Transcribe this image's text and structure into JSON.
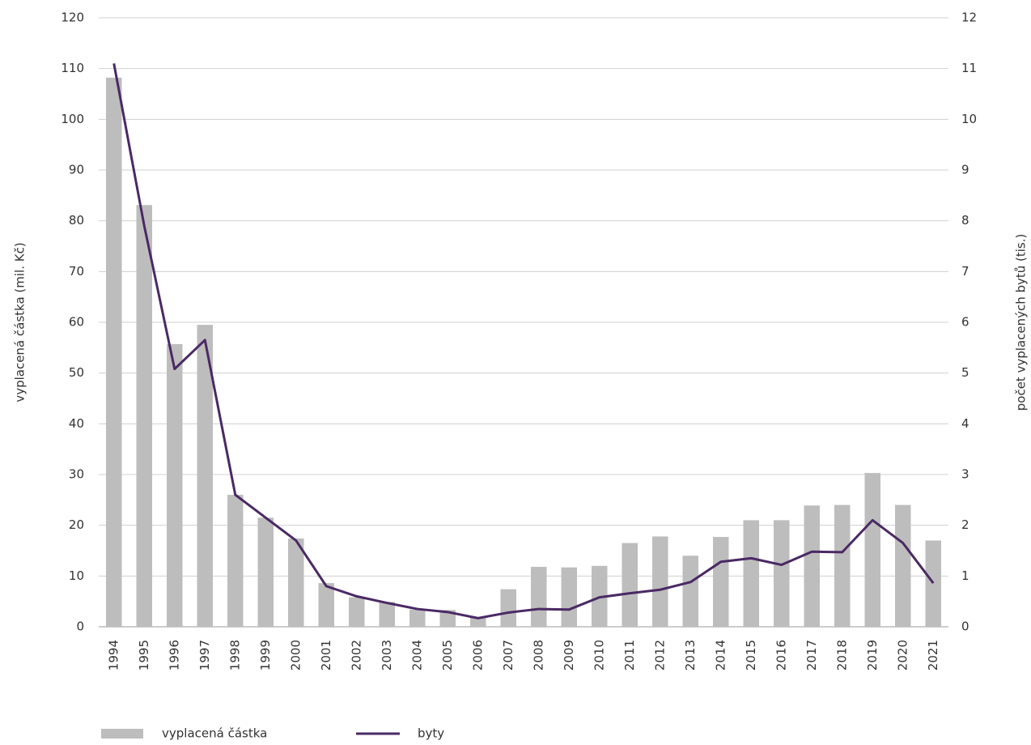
{
  "chart_data": {
    "type": "bar_line",
    "y_label": "vyplacená částka (mil. Kč)",
    "y2_label": "počet vyplacených bytů (tis.)",
    "categories": [
      "1994",
      "1995",
      "1996",
      "1997",
      "1998",
      "1999",
      "2000",
      "2001",
      "2002",
      "2003",
      "2004",
      "2005",
      "2006",
      "2007",
      "2008",
      "2009",
      "2010",
      "2011",
      "2012",
      "2013",
      "2014",
      "2015",
      "2016",
      "2017",
      "2018",
      "2019",
      "2020",
      "2021"
    ],
    "series": [
      {
        "name": "vyplacená částka",
        "type": "bar",
        "color": "#bdbdbd",
        "axis": "y",
        "values": [
          108.2,
          83.1,
          55.7,
          59.5,
          26,
          21.5,
          17.4,
          8.6,
          5.8,
          4.9,
          3.4,
          3.3,
          1.8,
          7.4,
          11.8,
          11.7,
          12,
          16.5,
          17.8,
          14,
          17.7,
          21,
          21,
          23.9,
          24,
          30.3,
          24,
          17
        ]
      },
      {
        "name": "byty",
        "type": "line",
        "color": "#4a2964",
        "axis": "y2",
        "values": [
          11.1,
          7.9,
          5.08,
          5.65,
          2.6,
          2.15,
          1.7,
          0.8,
          0.6,
          0.47,
          0.35,
          0.29,
          0.17,
          0.28,
          0.35,
          0.34,
          0.58,
          0.66,
          0.73,
          0.88,
          1.28,
          1.35,
          1.22,
          1.48,
          1.47,
          2.1,
          1.65,
          0.86
        ]
      }
    ],
    "ylim": [
      0,
      120
    ],
    "yticks": [
      0,
      10,
      20,
      30,
      40,
      50,
      60,
      70,
      80,
      90,
      100,
      110,
      120
    ],
    "y2lim": [
      0,
      12
    ],
    "y2ticks": [
      0,
      1,
      2,
      3,
      4,
      5,
      6,
      7,
      8,
      9,
      10,
      11,
      12
    ],
    "grid": true,
    "legend": "bottom"
  }
}
